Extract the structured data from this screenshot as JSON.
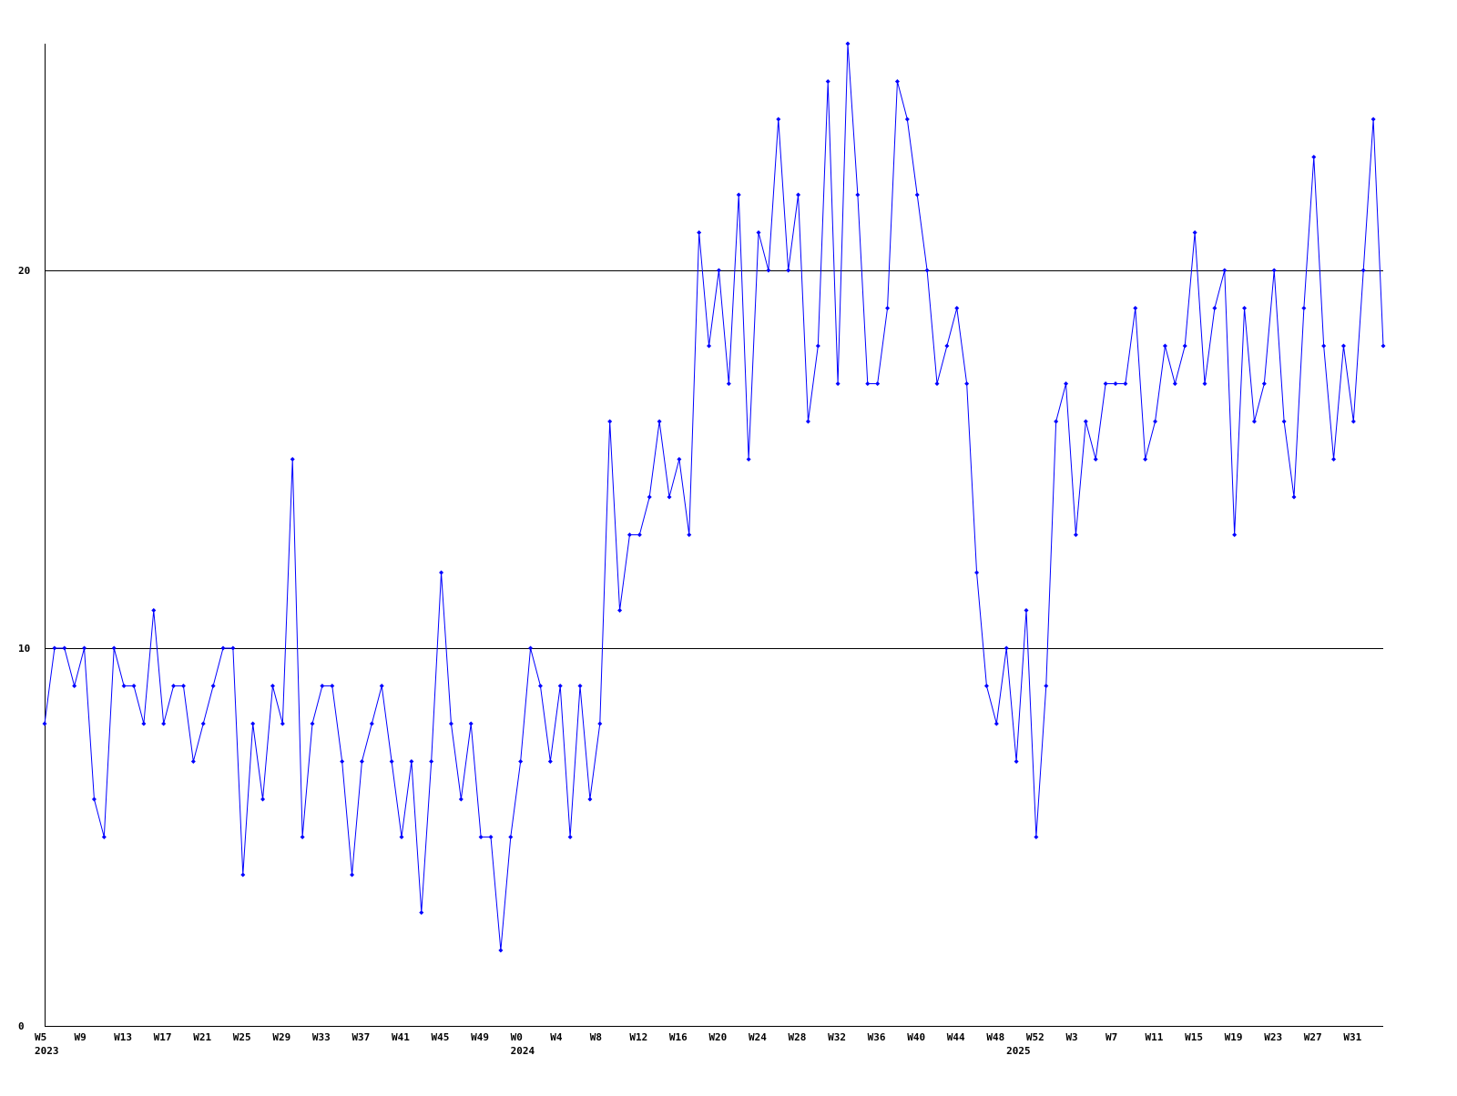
{
  "chart_data": {
    "type": "line",
    "categories": [
      "W5",
      null,
      null,
      null,
      "W9",
      null,
      null,
      null,
      "W13",
      null,
      null,
      null,
      "W17",
      null,
      null,
      null,
      "W21",
      null,
      null,
      null,
      "W25",
      null,
      null,
      null,
      "W29",
      null,
      null,
      null,
      "W33",
      null,
      null,
      null,
      "W37",
      null,
      null,
      null,
      "W41",
      null,
      null,
      null,
      "W45",
      null,
      null,
      null,
      "W49",
      null,
      null,
      null,
      "W0",
      null,
      null,
      null,
      "W4",
      null,
      null,
      null,
      "W8",
      null,
      null,
      null,
      "W12",
      null,
      null,
      null,
      "W16",
      null,
      null,
      null,
      "W20",
      null,
      null,
      null,
      "W24",
      null,
      null,
      null,
      "W28",
      null,
      null,
      null,
      "W32",
      null,
      null,
      null,
      "W36",
      null,
      null,
      null,
      "W40",
      null,
      null,
      null,
      "W44",
      null,
      null,
      null,
      "W48",
      null,
      null,
      null,
      "W52",
      null,
      null,
      null,
      "W3",
      null,
      null,
      null,
      "W7",
      null,
      null,
      null,
      "W11",
      null,
      null,
      null,
      "W15",
      null,
      null,
      null,
      "W19",
      null,
      null,
      null,
      "W23",
      null,
      null,
      null,
      "W27",
      null,
      null,
      null,
      "W31",
      null,
      null,
      null
    ],
    "years": [
      "2023",
      null,
      null,
      null,
      null,
      null,
      null,
      null,
      null,
      null,
      null,
      null,
      null,
      null,
      null,
      null,
      null,
      null,
      null,
      null,
      null,
      null,
      null,
      null,
      null,
      null,
      null,
      null,
      null,
      null,
      null,
      null,
      null,
      null,
      null,
      null,
      null,
      null,
      null,
      null,
      null,
      null,
      null,
      null,
      null,
      null,
      null,
      null,
      "2024",
      null,
      null,
      null,
      null,
      null,
      null,
      null,
      null,
      null,
      null,
      null,
      null,
      null,
      null,
      null,
      null,
      null,
      null,
      null,
      null,
      null,
      null,
      null,
      null,
      null,
      null,
      null,
      null,
      null,
      null,
      null,
      null,
      null,
      null,
      null,
      null,
      null,
      null,
      null,
      null,
      null,
      null,
      null,
      null,
      null,
      null,
      null,
      null,
      null,
      "2025",
      null,
      null,
      null,
      null,
      null,
      null,
      null,
      null,
      null,
      null,
      null,
      null,
      null,
      null,
      null,
      null,
      null,
      null,
      null,
      null,
      null,
      null,
      null,
      null,
      null,
      null,
      null,
      null,
      null,
      null,
      null,
      null,
      null,
      null,
      null
    ],
    "series": [
      {
        "color": "#0000ff",
        "values": [
          8,
          10,
          10,
          9,
          10,
          6,
          5,
          10,
          9,
          9,
          8,
          11,
          8,
          9,
          9,
          7,
          8,
          9,
          10,
          10,
          4,
          8,
          6,
          9,
          8,
          15,
          5,
          8,
          9,
          9,
          7,
          4,
          7,
          8,
          9,
          7,
          5,
          7,
          3,
          7,
          12,
          8,
          6,
          8,
          5,
          5,
          2,
          5,
          7,
          10,
          9,
          7,
          9,
          5,
          9,
          6,
          8,
          16,
          11,
          13,
          13,
          14,
          16,
          14,
          15,
          13,
          21,
          18,
          20,
          17,
          22,
          15,
          21,
          20,
          24,
          20,
          22,
          16,
          18,
          25,
          17,
          26,
          22,
          17,
          17,
          19,
          25,
          24,
          22,
          20,
          17,
          18,
          19,
          17,
          12,
          9,
          8,
          10,
          7,
          11,
          5,
          9,
          16,
          17,
          13,
          16,
          15,
          17,
          17,
          17,
          19,
          15,
          16,
          18,
          17,
          18,
          21,
          17,
          19,
          20,
          13,
          19,
          16,
          17,
          20,
          16,
          14,
          19,
          23,
          18,
          15,
          18,
          16,
          20,
          24,
          18
        ]
      }
    ],
    "ylim": [
      0,
      26
    ],
    "yticks": [
      0,
      10,
      20
    ],
    "grid": true
  }
}
